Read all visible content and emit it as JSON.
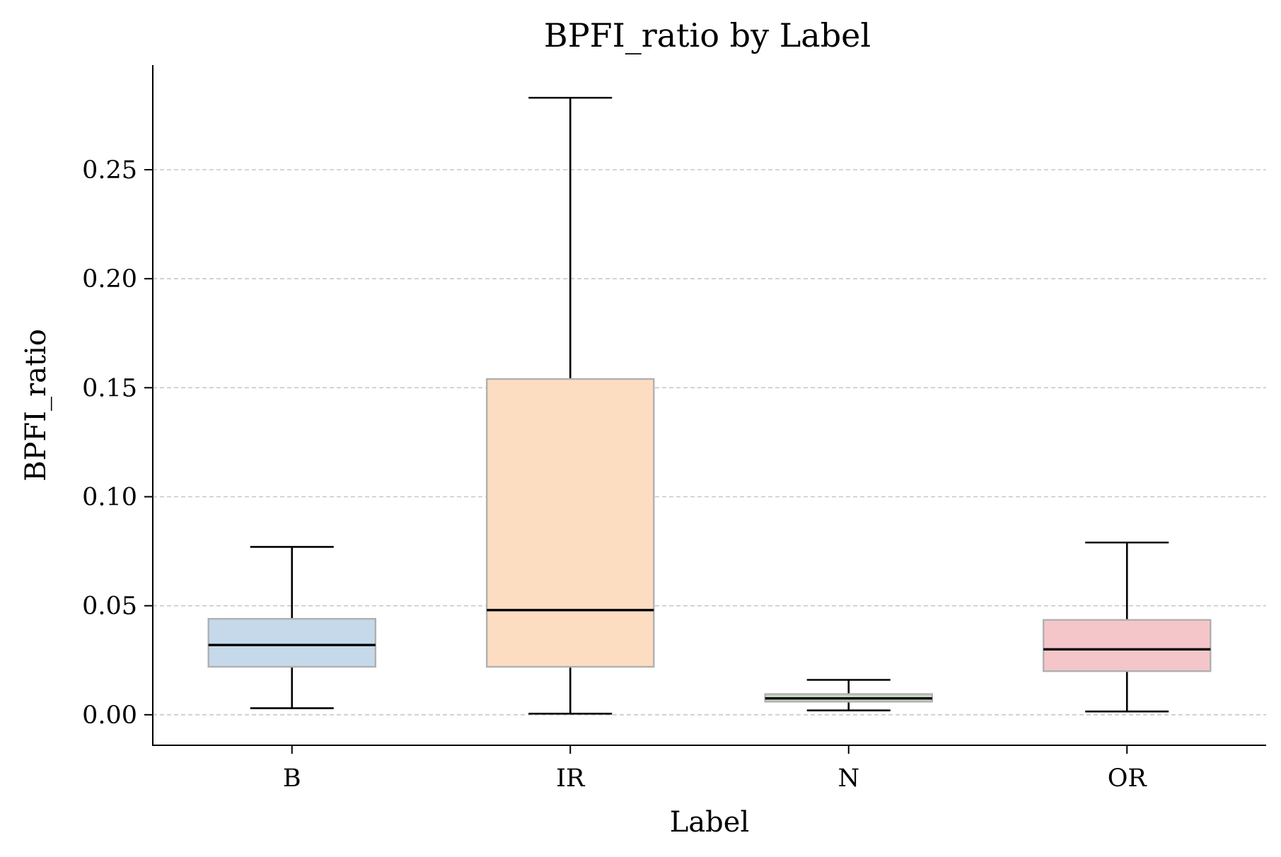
{
  "chart_data": {
    "type": "boxplot",
    "title": "BPFI_ratio by Label",
    "xlabel": "Label",
    "ylabel": "BPFI_ratio",
    "ylim": [
      -0.014,
      0.298
    ],
    "yticks": [
      0.0,
      0.05,
      0.1,
      0.15,
      0.2,
      0.25
    ],
    "ytick_labels": [
      "0.00",
      "0.05",
      "0.10",
      "0.15",
      "0.20",
      "0.25"
    ],
    "grid": "y-dashed",
    "categories": [
      "B",
      "IR",
      "N",
      "OR"
    ],
    "boxes": [
      {
        "label": "B",
        "whisker_low": 0.003,
        "q1": 0.022,
        "median": 0.032,
        "q3": 0.044,
        "whisker_high": 0.077,
        "color": "#c5d9ea"
      },
      {
        "label": "IR",
        "whisker_low": 0.0005,
        "q1": 0.022,
        "median": 0.048,
        "q3": 0.154,
        "whisker_high": 0.283,
        "color": "#fdddc1"
      },
      {
        "label": "N",
        "whisker_low": 0.002,
        "q1": 0.006,
        "median": 0.0075,
        "q3": 0.0095,
        "whisker_high": 0.016,
        "color": "#c8d6c3"
      },
      {
        "label": "OR",
        "whisker_low": 0.0015,
        "q1": 0.02,
        "median": 0.03,
        "q3": 0.0435,
        "whisker_high": 0.079,
        "color": "#f4c6c9"
      }
    ]
  }
}
